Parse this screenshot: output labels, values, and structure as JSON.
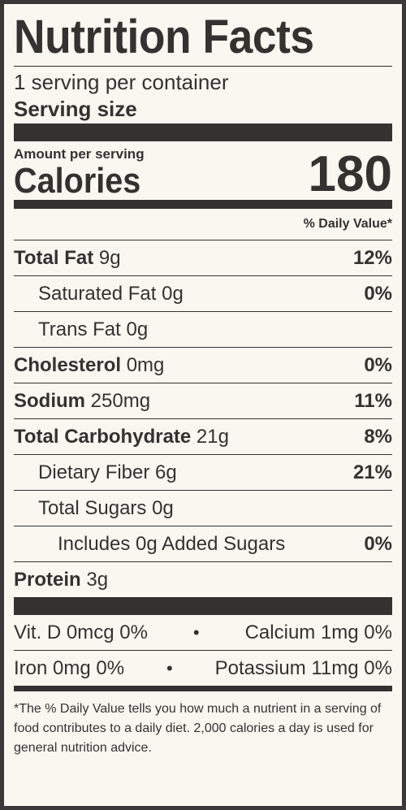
{
  "title": "Nutrition Facts",
  "servings_per_container": "1 serving per container",
  "serving_size_label": "Serving size",
  "amount_per_serving": "Amount per serving",
  "calories_label": "Calories",
  "calories_value": "180",
  "daily_value_header": "% Daily Value*",
  "nutrients": [
    {
      "name": "Total Fat",
      "amount": "9g",
      "dv": "12%"
    },
    {
      "name": "Saturated Fat",
      "amount": "0g",
      "dv": "0%"
    },
    {
      "name": "Trans Fat",
      "amount": "0g",
      "dv": ""
    },
    {
      "name": "Cholesterol",
      "amount": "0mg",
      "dv": "0%"
    },
    {
      "name": "Sodium",
      "amount": "250mg",
      "dv": "11%"
    },
    {
      "name": "Total Carbohydrate",
      "amount": "21g",
      "dv": "8%"
    },
    {
      "name": "Dietary Fiber",
      "amount": "6g",
      "dv": "21%"
    },
    {
      "name": "Total Sugars",
      "amount": "0g",
      "dv": ""
    },
    {
      "name": "Includes 0g Added Sugars",
      "amount": "",
      "dv": "0%"
    },
    {
      "name": "Protein",
      "amount": "3g",
      "dv": ""
    }
  ],
  "vitamins": [
    {
      "left": "Vit. D 0mcg 0%",
      "right": "Calcium 1mg 0%"
    },
    {
      "left": "Iron 0mg 0%",
      "right": "Potassium 11mg 0%"
    }
  ],
  "bullet": "•",
  "footnote": "*The % Daily Value tells you how much a nutrient in a serving of food contributes to a daily diet. 2,000 calories a day is used for general nutrition advice."
}
